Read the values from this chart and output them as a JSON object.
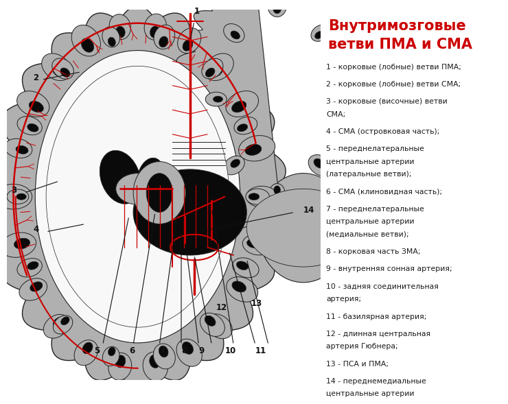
{
  "title_line1": "Внутримозговые",
  "title_line2": "ветви ПМА и СМА",
  "title_color": "#cc0000",
  "bg_color": "#ffffff",
  "legend_items": [
    "1 - корковые (лобные) ветви ПМА;",
    "2 - корковые (лобные) ветви СМА;",
    "3 - корковые (височные) ветви\nСМА;",
    "4 - СМА (островковая часть);",
    "5 - переднелатеральные\nцентральные артерии\n(латеральные ветви);",
    "6 - СМА (клиновидная часть);",
    "7 - переднелатеральные\nцентральные артерии\n(медиальные ветви);",
    "8 - корковая часть ЗМА;",
    "9 - внутренняя сонная артерия;",
    "10 - задняя соединительная\nартерия;",
    "11 - базилярная артерия;",
    "12 - длинная центральная\nартерия Гюбнера;",
    "13 - ПСА и ПМА;",
    "14 - переднемедиальные\nцентральные артерии"
  ],
  "legend_text_color": "#1a1a1a",
  "legend_fontsize": 7.8,
  "title_fontsize": 15,
  "gray_fill": "#b0b0b0",
  "gray_dark": "#888888",
  "black_fill": "#0a0a0a",
  "white_fill": "#f8f8f8",
  "artery_red": "#cc0000",
  "outline_color": "#222222"
}
